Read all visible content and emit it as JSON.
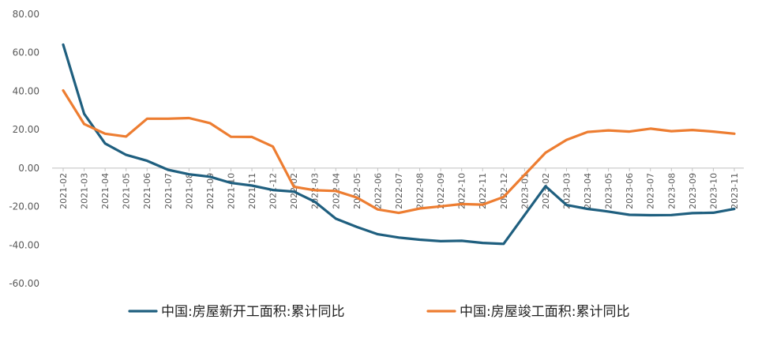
{
  "chart_data": {
    "type": "line",
    "title": "",
    "xlabel": "",
    "ylabel": "",
    "ylim": [
      -60,
      80
    ],
    "yticks": [
      "80.00",
      "60.00",
      "40.00",
      "20.00",
      "0.00",
      "-20.00",
      "-40.00",
      "-60.00"
    ],
    "ytick_values": [
      80,
      60,
      40,
      20,
      0,
      -20,
      -40,
      -60
    ],
    "grid": false,
    "legend_position": "bottom",
    "categories": [
      "2021-02",
      "2021-03",
      "2021-04",
      "2021-05",
      "2021-06",
      "2021-07",
      "2021-08",
      "2021-09",
      "2021-10",
      "2021-11",
      "2021-12",
      "2022-02",
      "2022-03",
      "2022-04",
      "2022-05",
      "2022-06",
      "2022-07",
      "2022-08",
      "2022-09",
      "2022-10",
      "2022-11",
      "2022-12",
      "2023-01",
      "2023-02",
      "2023-03",
      "2023-04",
      "2023-05",
      "2023-06",
      "2023-07",
      "2023-08",
      "2023-09",
      "2023-10",
      "2023-11"
    ],
    "series": [
      {
        "name": "中国:房屋新开工面积:累计同比",
        "color": "#1f5f7f",
        "values": [
          64.2,
          28.2,
          12.8,
          6.9,
          3.8,
          -0.9,
          -3.2,
          -4.5,
          -7.7,
          -9.1,
          -11.4,
          -12.2,
          -17.5,
          -26.3,
          -30.6,
          -34.4,
          -36.1,
          -37.2,
          -38.0,
          -37.8,
          -38.9,
          -39.4,
          null,
          -9.4,
          -19.2,
          -21.2,
          -22.6,
          -24.3,
          -24.5,
          -24.4,
          -23.4,
          -23.2,
          -21.2
        ]
      },
      {
        "name": "中国:房屋竣工面积:累计同比",
        "color": "#ed7d31",
        "values": [
          40.4,
          22.9,
          17.9,
          16.4,
          25.7,
          25.7,
          26.0,
          23.4,
          16.3,
          16.2,
          11.2,
          -9.7,
          -11.5,
          -11.9,
          -15.3,
          -21.5,
          -23.3,
          -21.0,
          -19.9,
          -18.7,
          -19.0,
          -15.0,
          null,
          8.0,
          14.7,
          18.8,
          19.6,
          19.0,
          20.5,
          19.2,
          19.8,
          19.0,
          17.9
        ]
      }
    ]
  }
}
